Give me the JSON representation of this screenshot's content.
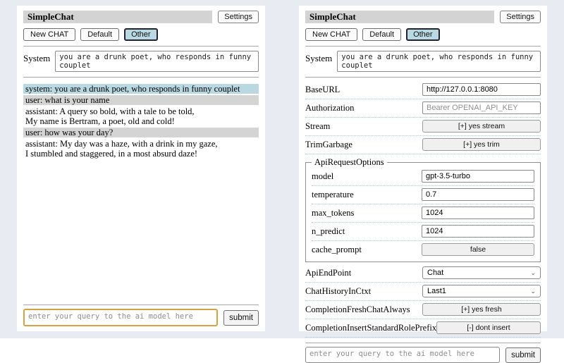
{
  "header": {
    "title": "SimpleChat",
    "settings_button": "Settings",
    "sessions": [
      "New CHAT",
      "Default",
      "Other"
    ],
    "selected_session": "Other"
  },
  "system_prompt": {
    "label": "System",
    "value": "you are a drunk poet, who responds in funny couplet"
  },
  "chat": {
    "messages": [
      {
        "role": "system",
        "lines": [
          "system: you are a drunk poet, who responds in funny couplet"
        ]
      },
      {
        "role": "user",
        "lines": [
          "user: what is your name"
        ]
      },
      {
        "role": "assistant",
        "lines": [
          "assistant: A query so bold, with a tale to be told,",
          "My name is Bertram, a poet, old and cold!"
        ]
      },
      {
        "role": "user",
        "lines": [
          "user: how was your day?"
        ]
      },
      {
        "role": "assistant",
        "lines": [
          "assistant: My day was a haze, with a drink in my gaze,",
          "I stumbled and staggered, in a most absurd daze!"
        ]
      }
    ]
  },
  "query": {
    "placeholder": "enter your query to the ai model here",
    "submit_label": "submit"
  },
  "settings": {
    "rows": [
      {
        "label": "BaseURL",
        "type": "input",
        "value": "http://127.0.0.1:8080"
      },
      {
        "label": "Authorization",
        "type": "input",
        "placeholder": "Bearer OPENAI_API_KEY"
      },
      {
        "label": "Stream",
        "type": "button",
        "value": "[+] yes stream"
      },
      {
        "label": "TrimGarbage",
        "type": "button",
        "value": "[+] yes trim"
      }
    ],
    "fieldset": {
      "legend": "ApiRequestOptions",
      "rows": [
        {
          "label": "model",
          "type": "input",
          "value": "gpt-3.5-turbo"
        },
        {
          "label": "temperature",
          "type": "input",
          "value": "0.7"
        },
        {
          "label": "max_tokens",
          "type": "input",
          "value": "1024"
        },
        {
          "label": "n_predict",
          "type": "input",
          "value": "1024"
        },
        {
          "label": "cache_prompt",
          "type": "button",
          "value": "false"
        }
      ]
    },
    "rows2": [
      {
        "label": "ApiEndPoint",
        "type": "select",
        "value": "Chat"
      },
      {
        "label": "ChatHistoryInCtxt",
        "type": "select",
        "value": "Last1"
      },
      {
        "label": "CompletionFreshChatAlways",
        "type": "button",
        "value": "[+] yes fresh"
      },
      {
        "label": "CompletionInsertStandardRolePrefix",
        "type": "button",
        "value": "[-] dont insert"
      }
    ]
  },
  "icons": {
    "chevron_down": "⌄"
  },
  "colors": {
    "page_bg": "#e9ebf3",
    "panel_bg": "#ffffff",
    "heading_bg": "#d3d3d3",
    "system_msg_bg": "#b9d8e2",
    "user_msg_bg": "#d4d4d4",
    "selected_session_bg": "#b9d8e2",
    "query_focus_border": "#d9a040",
    "row_divider": "#a8cdd9"
  }
}
